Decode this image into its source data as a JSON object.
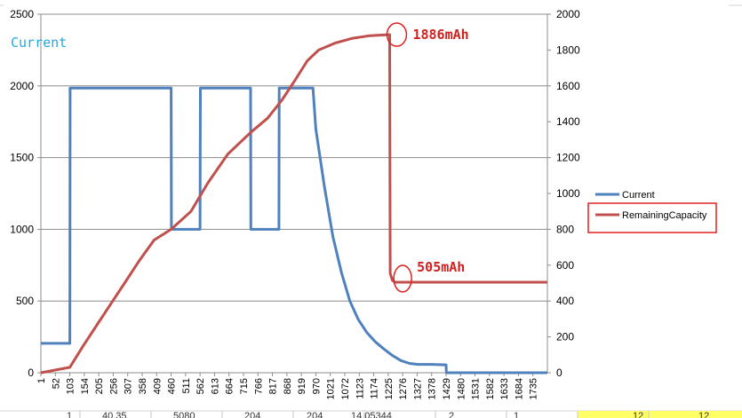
{
  "chart_data": {
    "type": "line",
    "title": "",
    "label": "Current",
    "y_left": {
      "min": 0,
      "max": 2500,
      "ticks": [
        "0",
        "500",
        "1000",
        "1500",
        "2000",
        "2500"
      ],
      "grid": true
    },
    "y_right": {
      "min": 0,
      "max": 2000,
      "ticks": [
        "0",
        "200",
        "400",
        "600",
        "800",
        "1000",
        "1200",
        "1400",
        "1600",
        "1800",
        "2000"
      ]
    },
    "x": {
      "min": 1,
      "max": 1786,
      "ticks": [
        "1",
        "52",
        "103",
        "154",
        "205",
        "256",
        "307",
        "358",
        "409",
        "460",
        "511",
        "562",
        "613",
        "664",
        "715",
        "766",
        "817",
        "868",
        "919",
        "970",
        "1021",
        "1072",
        "1123",
        "1174",
        "1225",
        "1276",
        "1327",
        "1378",
        "1429",
        "1480",
        "1531",
        "1582",
        "1633",
        "1684",
        "1735"
      ]
    },
    "series": [
      {
        "name": "Current",
        "axis": "left",
        "color": "#4F81BD",
        "points": [
          [
            1,
            205
          ],
          [
            103,
            205
          ],
          [
            104,
            1985
          ],
          [
            460,
            1985
          ],
          [
            461,
            1000
          ],
          [
            562,
            1000
          ],
          [
            563,
            1985
          ],
          [
            740,
            1985
          ],
          [
            741,
            1000
          ],
          [
            840,
            1000
          ],
          [
            841,
            1985
          ],
          [
            960,
            1985
          ],
          [
            970,
            1700
          ],
          [
            1000,
            1300
          ],
          [
            1030,
            950
          ],
          [
            1060,
            700
          ],
          [
            1090,
            500
          ],
          [
            1120,
            370
          ],
          [
            1150,
            280
          ],
          [
            1180,
            215
          ],
          [
            1210,
            165
          ],
          [
            1240,
            120
          ],
          [
            1270,
            85
          ],
          [
            1300,
            65
          ],
          [
            1330,
            58
          ],
          [
            1378,
            58
          ],
          [
            1429,
            55
          ],
          [
            1430,
            0
          ],
          [
            1786,
            0
          ]
        ]
      },
      {
        "name": "RemainingCapacity",
        "axis": "right",
        "color": "#C0504D",
        "points": [
          [
            1,
            0
          ],
          [
            103,
            30
          ],
          [
            150,
            150
          ],
          [
            200,
            270
          ],
          [
            250,
            390
          ],
          [
            300,
            510
          ],
          [
            350,
            630
          ],
          [
            400,
            740
          ],
          [
            460,
            800
          ],
          [
            530,
            900
          ],
          [
            590,
            1060
          ],
          [
            660,
            1220
          ],
          [
            740,
            1340
          ],
          [
            800,
            1420
          ],
          [
            850,
            1520
          ],
          [
            900,
            1640
          ],
          [
            940,
            1740
          ],
          [
            980,
            1800
          ],
          [
            1040,
            1840
          ],
          [
            1100,
            1866
          ],
          [
            1160,
            1880
          ],
          [
            1230,
            1886
          ],
          [
            1232,
            555
          ],
          [
            1240,
            515
          ],
          [
            1250,
            505
          ],
          [
            1786,
            505
          ]
        ]
      }
    ],
    "annotations": [
      "1886mAh",
      "505mAh"
    ],
    "legend": "right"
  },
  "sheet_strip": {
    "cells": [
      "1",
      "40.35",
      "5080",
      "204",
      "204",
      "14.05344",
      "2",
      "1",
      "12",
      "12"
    ]
  }
}
